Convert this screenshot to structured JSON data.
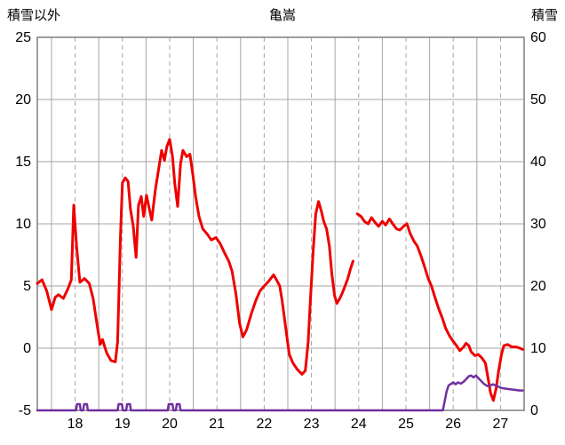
{
  "chart_data": {
    "type": "line",
    "title": "亀嵩",
    "left_axis": {
      "title": "積雪以外",
      "min": -5,
      "max": 25,
      "ticks": [
        25,
        20,
        15,
        10,
        5,
        0,
        -5
      ]
    },
    "right_axis": {
      "title": "積雪",
      "min": 0,
      "max": 60,
      "ticks": [
        60,
        50,
        40,
        30,
        20,
        10,
        0
      ]
    },
    "x_axis": {
      "min": 17.2,
      "max": 27.5,
      "ticks": [
        18,
        19,
        20,
        21,
        22,
        23,
        24,
        25,
        26,
        27
      ],
      "solid_gridlines": [
        17.5,
        18.5,
        19.5,
        20.5,
        21.5,
        22.5,
        23.5,
        24.5,
        25.5,
        26.5
      ],
      "dashed_gridlines": [
        18,
        19,
        20,
        21,
        22,
        23,
        24,
        25,
        26,
        27
      ]
    },
    "grid_on": true,
    "legend": "none",
    "grid_color": "#a6a6a6",
    "frame_color": "#7f7f7f",
    "background": "#ffffff",
    "series": [
      {
        "name": "積雪以外",
        "axis": "left",
        "color": "#ee0000",
        "width": 3,
        "points": [
          [
            17.2,
            5.2
          ],
          [
            17.3,
            5.5
          ],
          [
            17.4,
            4.6
          ],
          [
            17.5,
            3.1
          ],
          [
            17.58,
            4.1
          ],
          [
            17.65,
            4.3
          ],
          [
            17.75,
            4.0
          ],
          [
            17.85,
            4.8
          ],
          [
            17.92,
            5.5
          ],
          [
            17.97,
            11.5
          ],
          [
            18.03,
            8.2
          ],
          [
            18.1,
            5.3
          ],
          [
            18.2,
            5.6
          ],
          [
            18.3,
            5.2
          ],
          [
            18.38,
            4.0
          ],
          [
            18.48,
            1.5
          ],
          [
            18.53,
            0.3
          ],
          [
            18.58,
            0.7
          ],
          [
            18.62,
            0.2
          ],
          [
            18.67,
            -0.4
          ],
          [
            18.76,
            -1.0
          ],
          [
            18.85,
            -1.1
          ],
          [
            18.9,
            0.5
          ],
          [
            18.96,
            9.0
          ],
          [
            19.0,
            13.3
          ],
          [
            19.06,
            13.7
          ],
          [
            19.12,
            13.4
          ],
          [
            19.17,
            11.2
          ],
          [
            19.23,
            9.8
          ],
          [
            19.29,
            7.3
          ],
          [
            19.34,
            11.5
          ],
          [
            19.4,
            12.2
          ],
          [
            19.45,
            10.6
          ],
          [
            19.51,
            12.3
          ],
          [
            19.57,
            11.2
          ],
          [
            19.62,
            10.3
          ],
          [
            19.7,
            12.8
          ],
          [
            19.75,
            14.0
          ],
          [
            19.83,
            15.9
          ],
          [
            19.89,
            15.1
          ],
          [
            19.94,
            16.2
          ],
          [
            20.0,
            16.8
          ],
          [
            20.06,
            15.4
          ],
          [
            20.11,
            13.2
          ],
          [
            20.17,
            11.4
          ],
          [
            20.23,
            14.8
          ],
          [
            20.28,
            15.9
          ],
          [
            20.36,
            15.4
          ],
          [
            20.43,
            15.6
          ],
          [
            20.49,
            14.0
          ],
          [
            20.55,
            12.2
          ],
          [
            20.62,
            10.6
          ],
          [
            20.7,
            9.6
          ],
          [
            20.79,
            9.2
          ],
          [
            20.88,
            8.7
          ],
          [
            20.98,
            8.9
          ],
          [
            21.07,
            8.4
          ],
          [
            21.17,
            7.6
          ],
          [
            21.25,
            7.0
          ],
          [
            21.32,
            6.2
          ],
          [
            21.4,
            4.4
          ],
          [
            21.48,
            2.0
          ],
          [
            21.55,
            0.9
          ],
          [
            21.63,
            1.5
          ],
          [
            21.73,
            2.8
          ],
          [
            21.82,
            3.8
          ],
          [
            21.91,
            4.6
          ],
          [
            22.0,
            5.0
          ],
          [
            22.1,
            5.4
          ],
          [
            22.2,
            5.9
          ],
          [
            22.26,
            5.5
          ],
          [
            22.33,
            5.0
          ],
          [
            22.38,
            3.8
          ],
          [
            22.46,
            1.5
          ],
          [
            22.53,
            -0.5
          ],
          [
            22.61,
            -1.2
          ],
          [
            22.7,
            -1.7
          ],
          [
            22.8,
            -2.1
          ],
          [
            22.87,
            -1.8
          ],
          [
            22.93,
            0.5
          ],
          [
            22.98,
            4.0
          ],
          [
            23.04,
            8.0
          ],
          [
            23.09,
            10.8
          ],
          [
            23.15,
            11.8
          ],
          [
            23.21,
            11.0
          ],
          [
            23.26,
            10.2
          ],
          [
            23.32,
            9.6
          ],
          [
            23.38,
            8.2
          ],
          [
            23.43,
            6.0
          ],
          [
            23.49,
            4.2
          ],
          [
            23.54,
            3.6
          ],
          [
            23.6,
            4.0
          ],
          [
            23.66,
            4.5
          ],
          [
            23.71,
            5.0
          ],
          [
            23.77,
            5.6
          ],
          [
            23.82,
            6.3
          ],
          [
            23.88,
            7.0
          ],
          null,
          [
            23.97,
            10.8
          ],
          [
            24.05,
            10.6
          ],
          [
            24.12,
            10.2
          ],
          [
            24.2,
            10.0
          ],
          [
            24.27,
            10.5
          ],
          [
            24.35,
            10.1
          ],
          [
            24.42,
            9.8
          ],
          [
            24.5,
            10.2
          ],
          [
            24.57,
            9.9
          ],
          [
            24.65,
            10.4
          ],
          [
            24.72,
            10.0
          ],
          [
            24.8,
            9.6
          ],
          [
            24.87,
            9.5
          ],
          [
            24.95,
            9.8
          ],
          [
            25.02,
            10.0
          ],
          [
            25.09,
            9.2
          ],
          [
            25.17,
            8.6
          ],
          [
            25.24,
            8.2
          ],
          [
            25.32,
            7.4
          ],
          [
            25.39,
            6.6
          ],
          [
            25.47,
            5.6
          ],
          [
            25.54,
            5.0
          ],
          [
            25.62,
            4.0
          ],
          [
            25.69,
            3.2
          ],
          [
            25.77,
            2.4
          ],
          [
            25.84,
            1.6
          ],
          [
            25.92,
            1.0
          ],
          [
            25.99,
            0.6
          ],
          [
            26.07,
            0.2
          ],
          [
            26.14,
            -0.2
          ],
          [
            26.22,
            0.1
          ],
          [
            26.27,
            0.4
          ],
          [
            26.33,
            0.2
          ],
          [
            26.38,
            -0.3
          ],
          [
            26.46,
            -0.6
          ],
          [
            26.53,
            -0.5
          ],
          [
            26.61,
            -0.8
          ],
          [
            26.68,
            -1.2
          ],
          [
            26.74,
            -2.5
          ],
          [
            26.79,
            -3.6
          ],
          [
            26.85,
            -4.2
          ],
          [
            26.91,
            -3.2
          ],
          [
            26.96,
            -1.8
          ],
          [
            27.02,
            -0.5
          ],
          [
            27.07,
            0.2
          ],
          [
            27.15,
            0.3
          ],
          [
            27.24,
            0.1
          ],
          [
            27.33,
            0.1
          ],
          [
            27.41,
            0.0
          ],
          [
            27.47,
            -0.1
          ]
        ]
      },
      {
        "name": "積雪",
        "axis": "right",
        "color": "#7030a0",
        "width": 2.5,
        "points": [
          [
            17.2,
            0
          ],
          [
            18.02,
            0
          ],
          [
            18.04,
            1
          ],
          [
            18.1,
            1
          ],
          [
            18.12,
            0
          ],
          [
            18.17,
            0
          ],
          [
            18.19,
            1
          ],
          [
            18.25,
            1
          ],
          [
            18.27,
            0
          ],
          [
            18.9,
            0
          ],
          [
            18.92,
            1
          ],
          [
            18.99,
            1
          ],
          [
            19.01,
            0
          ],
          [
            19.08,
            0
          ],
          [
            19.1,
            1
          ],
          [
            19.16,
            1
          ],
          [
            19.18,
            0
          ],
          [
            19.96,
            0
          ],
          [
            19.98,
            1
          ],
          [
            20.06,
            1
          ],
          [
            20.08,
            0
          ],
          [
            20.13,
            0
          ],
          [
            20.15,
            1
          ],
          [
            20.21,
            1
          ],
          [
            20.23,
            0
          ],
          [
            25.78,
            0
          ],
          [
            25.82,
            1.5
          ],
          [
            25.86,
            3.0
          ],
          [
            25.9,
            4.0
          ],
          [
            25.96,
            4.3
          ],
          [
            26.0,
            4.5
          ],
          [
            26.05,
            4.2
          ],
          [
            26.1,
            4.5
          ],
          [
            26.16,
            4.3
          ],
          [
            26.22,
            4.6
          ],
          [
            26.27,
            5.0
          ],
          [
            26.33,
            5.5
          ],
          [
            26.38,
            5.6
          ],
          [
            26.43,
            5.3
          ],
          [
            26.48,
            5.6
          ],
          [
            26.53,
            5.2
          ],
          [
            26.58,
            4.8
          ],
          [
            26.63,
            4.4
          ],
          [
            26.68,
            4.1
          ],
          [
            26.73,
            3.9
          ],
          [
            26.79,
            4.0
          ],
          [
            26.84,
            4.2
          ],
          [
            26.9,
            4.0
          ],
          [
            26.96,
            3.8
          ],
          [
            27.02,
            3.6
          ],
          [
            27.1,
            3.5
          ],
          [
            27.2,
            3.4
          ],
          [
            27.3,
            3.3
          ],
          [
            27.4,
            3.2
          ],
          [
            27.47,
            3.2
          ]
        ]
      }
    ]
  }
}
